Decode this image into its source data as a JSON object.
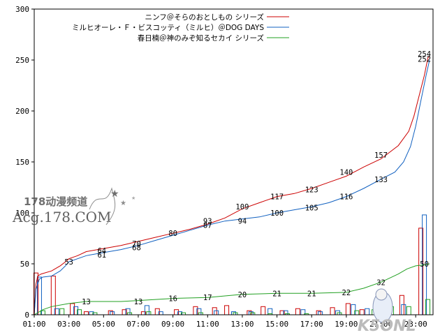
{
  "chart_data": {
    "type": "line",
    "title": "",
    "xlabel": "",
    "ylabel": "",
    "ylim": [
      0,
      300
    ],
    "yticks": [
      0,
      50,
      100,
      150,
      200,
      250,
      300
    ],
    "xlim": [
      1,
      24
    ],
    "xticks": [
      {
        "v": 1,
        "label": "01:00"
      },
      {
        "v": 3,
        "label": "03:00"
      },
      {
        "v": 5,
        "label": "05:00"
      },
      {
        "v": 7,
        "label": "07:00"
      },
      {
        "v": 9,
        "label": "09:00"
      },
      {
        "v": 11,
        "label": "11:00"
      },
      {
        "v": 13,
        "label": "13:00"
      },
      {
        "v": 15,
        "label": "15:00"
      },
      {
        "v": 17,
        "label": "17:00"
      },
      {
        "v": 19,
        "label": "19:00"
      },
      {
        "v": 21,
        "label": "21:00"
      },
      {
        "v": 23,
        "label": "23:00"
      }
    ],
    "grid": false,
    "legend_position": "top-right",
    "series": [
      {
        "name": "ニンフ＠そらのおとしもの シリーズ",
        "color": "#cc0000",
        "cumulative": [
          [
            1,
            0
          ],
          [
            1.1,
            30
          ],
          [
            1.2,
            38
          ],
          [
            1.4,
            40
          ],
          [
            2,
            43
          ],
          [
            2.5,
            48
          ],
          [
            2.8,
            52
          ],
          [
            3,
            55
          ],
          [
            3.5,
            58
          ],
          [
            4,
            62
          ],
          [
            5,
            65
          ],
          [
            6,
            68
          ],
          [
            7,
            72
          ],
          [
            8,
            76
          ],
          [
            9,
            80
          ],
          [
            10,
            84
          ],
          [
            11,
            89
          ],
          [
            12,
            95
          ],
          [
            13,
            104
          ],
          [
            14,
            110
          ],
          [
            15,
            116
          ],
          [
            16,
            119
          ],
          [
            17,
            124
          ],
          [
            18,
            130
          ],
          [
            19,
            136
          ],
          [
            20,
            145
          ],
          [
            21,
            153
          ],
          [
            22,
            166
          ],
          [
            22.6,
            180
          ],
          [
            22.9,
            195
          ],
          [
            23.2,
            215
          ],
          [
            23.5,
            235
          ],
          [
            23.7,
            252
          ],
          [
            23.8,
            254
          ]
        ],
        "hourly": [
          [
            1.1,
            41
          ],
          [
            2.1,
            38
          ],
          [
            3.2,
            11
          ],
          [
            4.0,
            3
          ],
          [
            5.4,
            4
          ],
          [
            6.2,
            5
          ],
          [
            7.3,
            3
          ],
          [
            8.1,
            6
          ],
          [
            9.2,
            5
          ],
          [
            10.3,
            8
          ],
          [
            11.4,
            7
          ],
          [
            12.1,
            9
          ],
          [
            13.4,
            4
          ],
          [
            14.2,
            8
          ],
          [
            15.3,
            4
          ],
          [
            16.2,
            6
          ],
          [
            17.4,
            4
          ],
          [
            18.2,
            7
          ],
          [
            19.1,
            11
          ],
          [
            19.9,
            5
          ],
          [
            20.9,
            7
          ],
          [
            22.2,
            19
          ],
          [
            23.3,
            85
          ]
        ]
      },
      {
        "name": "ミルヒオーレ・Ｆ・ビスコッティ（ミルヒ）＠DOG DAYS",
        "color": "#1060c0",
        "cumulative": [
          [
            1,
            0
          ],
          [
            1.1,
            25
          ],
          [
            1.3,
            35
          ],
          [
            1.5,
            37
          ],
          [
            2,
            38
          ],
          [
            2.5,
            43
          ],
          [
            2.8,
            48
          ],
          [
            3,
            52
          ],
          [
            3.5,
            55
          ],
          [
            4,
            58
          ],
          [
            5,
            61
          ],
          [
            6,
            64
          ],
          [
            7,
            68
          ],
          [
            8,
            73
          ],
          [
            9,
            78
          ],
          [
            10,
            83
          ],
          [
            11,
            88
          ],
          [
            12,
            92
          ],
          [
            13,
            94
          ],
          [
            14,
            96
          ],
          [
            15,
            100
          ],
          [
            16,
            103
          ],
          [
            17,
            106
          ],
          [
            18,
            110
          ],
          [
            19,
            116
          ],
          [
            20,
            124
          ],
          [
            21,
            133
          ],
          [
            21.8,
            140
          ],
          [
            22.3,
            150
          ],
          [
            22.7,
            165
          ],
          [
            23,
            185
          ],
          [
            23.3,
            210
          ],
          [
            23.6,
            235
          ],
          [
            23.8,
            250
          ]
        ],
        "hourly": [
          [
            1.3,
            37
          ],
          [
            2.3,
            6
          ],
          [
            3.4,
            8
          ],
          [
            4.3,
            3
          ],
          [
            5.5,
            3
          ],
          [
            6.4,
            6
          ],
          [
            7.5,
            9
          ],
          [
            8.3,
            3
          ],
          [
            9.4,
            3
          ],
          [
            10.5,
            6
          ],
          [
            11.5,
            4
          ],
          [
            12.5,
            3
          ],
          [
            13.5,
            3
          ],
          [
            14.6,
            6
          ],
          [
            15.5,
            4
          ],
          [
            16.5,
            5
          ],
          [
            17.5,
            3
          ],
          [
            18.5,
            4
          ],
          [
            19.4,
            10
          ],
          [
            20.2,
            6
          ],
          [
            21.0,
            5
          ],
          [
            22.3,
            10
          ],
          [
            23.5,
            98
          ]
        ]
      },
      {
        "name": "春日楠＠神のみぞ知るセカイ シリーズ",
        "color": "#22a022",
        "cumulative": [
          [
            1,
            0
          ],
          [
            1.5,
            5
          ],
          [
            2,
            8
          ],
          [
            3,
            11
          ],
          [
            4,
            13
          ],
          [
            6,
            13
          ],
          [
            7,
            14
          ],
          [
            9,
            16
          ],
          [
            11,
            17
          ],
          [
            13,
            20
          ],
          [
            15,
            21
          ],
          [
            17,
            21
          ],
          [
            19,
            22
          ],
          [
            20,
            26
          ],
          [
            21,
            32
          ],
          [
            22,
            40
          ],
          [
            22.5,
            45
          ],
          [
            23,
            48
          ],
          [
            23.5,
            49
          ],
          [
            23.8,
            50
          ]
        ],
        "hourly": [
          [
            1.5,
            4
          ],
          [
            2.6,
            6
          ],
          [
            3.6,
            5
          ],
          [
            4.5,
            2
          ],
          [
            6.5,
            2
          ],
          [
            7.6,
            3
          ],
          [
            9.6,
            2
          ],
          [
            10.6,
            2
          ],
          [
            12.6,
            2
          ],
          [
            13.6,
            2
          ],
          [
            14.6,
            1
          ],
          [
            15.6,
            1
          ],
          [
            16.7,
            1
          ],
          [
            18.6,
            2
          ],
          [
            19.6,
            4
          ],
          [
            20.6,
            5
          ],
          [
            21.6,
            8
          ],
          [
            22.6,
            8
          ],
          [
            23.7,
            15
          ]
        ]
      }
    ],
    "annotations": [
      {
        "x": 3,
        "y": 52,
        "text": "53",
        "color": "#000"
      },
      {
        "x": 4.9,
        "y": 63,
        "text": "64",
        "color": "#000"
      },
      {
        "x": 4.9,
        "y": 59,
        "text": "61",
        "color": "#000"
      },
      {
        "x": 6.9,
        "y": 70,
        "text": "70",
        "color": "#000"
      },
      {
        "x": 6.9,
        "y": 66,
        "text": "68",
        "color": "#000"
      },
      {
        "x": 9,
        "y": 80,
        "text": "80",
        "color": "#000"
      },
      {
        "x": 11,
        "y": 92,
        "text": "93",
        "color": "#000"
      },
      {
        "x": 11,
        "y": 88,
        "text": "87",
        "color": "#000"
      },
      {
        "x": 13,
        "y": 106,
        "text": "109",
        "color": "#000"
      },
      {
        "x": 13,
        "y": 92,
        "text": "94",
        "color": "#000"
      },
      {
        "x": 15,
        "y": 116,
        "text": "117",
        "color": "#000"
      },
      {
        "x": 15,
        "y": 100,
        "text": "100",
        "color": "#000"
      },
      {
        "x": 17,
        "y": 123,
        "text": "123",
        "color": "#000"
      },
      {
        "x": 17,
        "y": 105,
        "text": "105",
        "color": "#000"
      },
      {
        "x": 19,
        "y": 140,
        "text": "140",
        "color": "#000"
      },
      {
        "x": 19,
        "y": 116,
        "text": "116",
        "color": "#000"
      },
      {
        "x": 21,
        "y": 157,
        "text": "157",
        "color": "#000"
      },
      {
        "x": 21,
        "y": 133,
        "text": "133",
        "color": "#000"
      },
      {
        "x": 23.5,
        "y": 256,
        "text": "254",
        "color": "#000"
      },
      {
        "x": 23.5,
        "y": 251,
        "text": "252",
        "color": "#000"
      },
      {
        "x": 4,
        "y": 13,
        "text": "13",
        "color": "#000"
      },
      {
        "x": 7,
        "y": 13,
        "text": "13",
        "color": "#000"
      },
      {
        "x": 9,
        "y": 16,
        "text": "16",
        "color": "#000"
      },
      {
        "x": 11,
        "y": 17,
        "text": "17",
        "color": "#000"
      },
      {
        "x": 13,
        "y": 20,
        "text": "20",
        "color": "#000"
      },
      {
        "x": 15,
        "y": 21,
        "text": "21",
        "color": "#000"
      },
      {
        "x": 17,
        "y": 21,
        "text": "21",
        "color": "#000"
      },
      {
        "x": 19,
        "y": 22,
        "text": "22",
        "color": "#000"
      },
      {
        "x": 21,
        "y": 32,
        "text": "32",
        "color": "#000"
      },
      {
        "x": 23.5,
        "y": 50,
        "text": "50",
        "color": "#000"
      }
    ]
  },
  "watermark": {
    "line1": "178动漫频道",
    "line2": "Acg.178.COM",
    "corner": "K5ONL"
  }
}
